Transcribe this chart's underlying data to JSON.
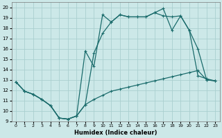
{
  "xlabel": "Humidex (Indice chaleur)",
  "bg_color": "#cce8e8",
  "grid_color": "#aacfcf",
  "line_color": "#1a6b6b",
  "xlim": [
    -0.5,
    23.5
  ],
  "ylim": [
    9,
    20.5
  ],
  "xticks": [
    0,
    1,
    2,
    3,
    4,
    5,
    6,
    7,
    8,
    9,
    10,
    11,
    12,
    13,
    14,
    15,
    16,
    17,
    18,
    19,
    20,
    21,
    22,
    23
  ],
  "yticks": [
    9,
    10,
    11,
    12,
    13,
    14,
    15,
    16,
    17,
    18,
    19,
    20
  ],
  "series1_x": [
    0,
    1,
    2,
    3,
    4,
    5,
    6,
    7,
    8,
    9,
    10,
    11,
    12,
    13,
    14,
    15,
    16,
    17,
    18,
    19,
    20,
    21,
    22,
    23
  ],
  "series1_y": [
    12.8,
    11.9,
    11.6,
    11.1,
    10.5,
    9.3,
    9.2,
    9.5,
    10.6,
    11.1,
    11.5,
    11.9,
    12.1,
    12.3,
    12.5,
    12.7,
    12.9,
    13.1,
    13.3,
    13.5,
    13.7,
    13.9,
    13.0,
    12.9
  ],
  "series2_x": [
    0,
    1,
    2,
    3,
    4,
    5,
    6,
    7,
    8,
    9,
    10,
    11,
    12,
    13,
    14,
    15,
    16,
    17,
    18,
    19,
    20,
    21,
    22,
    23
  ],
  "series2_y": [
    12.8,
    11.9,
    11.6,
    11.1,
    10.5,
    9.3,
    9.2,
    9.5,
    10.6,
    15.6,
    17.5,
    18.6,
    19.3,
    19.1,
    19.1,
    19.1,
    19.5,
    19.9,
    17.8,
    19.2,
    17.8,
    13.4,
    13.1,
    12.9
  ],
  "series3_x": [
    0,
    1,
    2,
    3,
    4,
    5,
    6,
    7,
    8,
    9,
    10,
    11,
    12,
    13,
    14,
    15,
    16,
    17,
    18,
    19,
    20,
    21,
    22,
    23
  ],
  "series3_y": [
    12.8,
    11.9,
    11.6,
    11.1,
    10.5,
    9.3,
    9.2,
    9.5,
    15.8,
    14.3,
    19.3,
    18.6,
    19.3,
    19.1,
    19.1,
    19.1,
    19.5,
    19.2,
    19.1,
    19.2,
    17.8,
    16.0,
    13.0,
    12.9
  ]
}
